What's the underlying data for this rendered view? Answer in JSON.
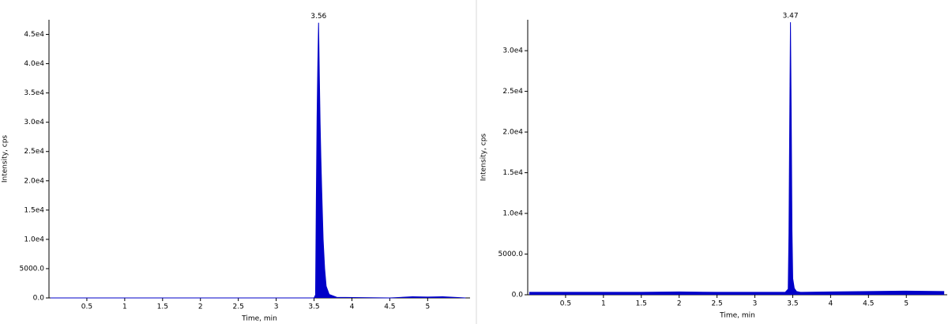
{
  "chart_data": [
    {
      "type": "area",
      "color": "#0000c8",
      "x_label": "Time, min",
      "y_label": "Intensity, cps",
      "annotations": [
        {
          "x": 3.56,
          "label": "3.56"
        }
      ],
      "xlim": [
        0,
        5.56
      ],
      "ylim": [
        0,
        47500
      ],
      "xticks": [
        0.5,
        1.0,
        1.5,
        2.0,
        2.5,
        3.0,
        3.5,
        4.0,
        4.5,
        5.0
      ],
      "yticks": [
        {
          "value": 0,
          "label": "0.0"
        },
        {
          "value": 5000,
          "label": "5000.0"
        },
        {
          "value": 10000,
          "label": "1.0e4"
        },
        {
          "value": 15000,
          "label": "1.5e4"
        },
        {
          "value": 20000,
          "label": "2.0e4"
        },
        {
          "value": 25000,
          "label": "2.5e4"
        },
        {
          "value": 30000,
          "label": "3.0e4"
        },
        {
          "value": 35000,
          "label": "3.5e4"
        },
        {
          "value": 40000,
          "label": "4.0e4"
        },
        {
          "value": 45000,
          "label": "4.5e4"
        }
      ],
      "x": [
        0.02,
        1,
        2,
        3,
        3.5,
        3.52,
        3.53,
        3.54,
        3.55,
        3.56,
        3.57,
        3.58,
        3.59,
        3.6,
        3.62,
        3.64,
        3.66,
        3.7,
        3.8,
        4.5,
        4.8,
        5.0,
        5.2,
        5.5
      ],
      "values": [
        0,
        0,
        0,
        0,
        0,
        500,
        17000,
        31000,
        40000,
        47000,
        38000,
        30000,
        24000,
        19000,
        10000,
        5000,
        2000,
        600,
        100,
        0,
        200,
        150,
        200,
        0
      ]
    },
    {
      "type": "area",
      "color": "#0000c8",
      "x_label": "Time, min",
      "y_label": "Intensity, cps",
      "annotations": [
        {
          "x": 3.47,
          "label": "3.47"
        }
      ],
      "xlim": [
        0,
        5.54
      ],
      "ylim": [
        0,
        33800
      ],
      "xticks": [
        0.5,
        1.0,
        1.5,
        2.0,
        2.5,
        3.0,
        3.5,
        4.0,
        4.5,
        5.0
      ],
      "yticks": [
        {
          "value": 0,
          "label": "0.0"
        },
        {
          "value": 5000,
          "label": "5000.0"
        },
        {
          "value": 10000,
          "label": "1.0e4"
        },
        {
          "value": 15000,
          "label": "1.5e4"
        },
        {
          "value": 20000,
          "label": "2.0e4"
        },
        {
          "value": 25000,
          "label": "2.5e4"
        },
        {
          "value": 30000,
          "label": "3.0e4"
        }
      ],
      "x": [
        0.02,
        0.5,
        1,
        1.5,
        2,
        2.5,
        3,
        3.4,
        3.44,
        3.45,
        3.46,
        3.47,
        3.48,
        3.49,
        3.5,
        3.52,
        3.55,
        3.6,
        4,
        4.5,
        5,
        5.5
      ],
      "values": [
        300,
        300,
        300,
        300,
        350,
        300,
        300,
        300,
        700,
        7500,
        21000,
        33500,
        22000,
        8000,
        2000,
        800,
        400,
        300,
        350,
        400,
        450,
        400
      ]
    }
  ]
}
